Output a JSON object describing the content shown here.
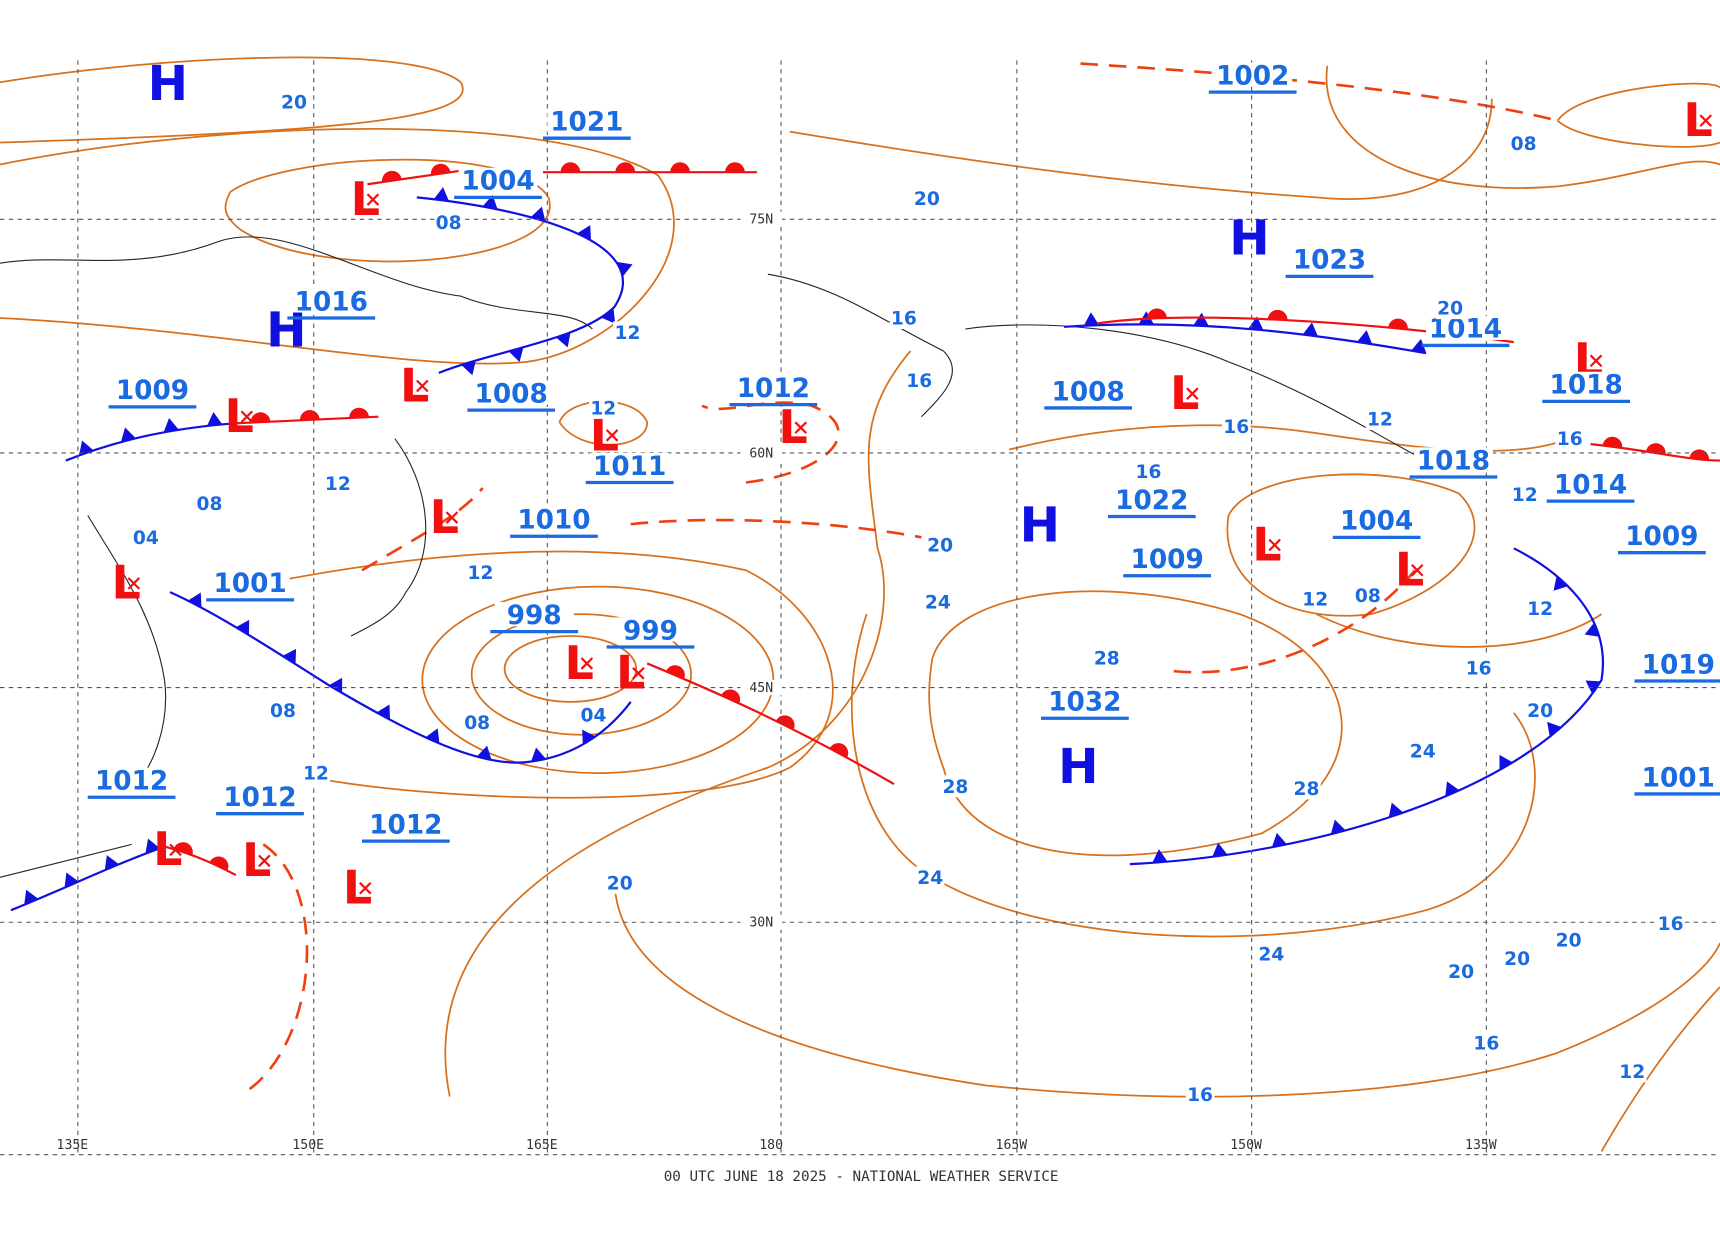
{
  "map": {
    "longitude_labels": [
      "135E",
      "150E",
      "165E",
      "180",
      "165W",
      "150W",
      "135W"
    ],
    "latitude_labels": [
      "75N",
      "60N",
      "45N",
      "30N"
    ],
    "footer": "00 UTC JUNE 18 2025 - NATIONAL WEATHER SERVICE",
    "high_symbols": [
      "H",
      "H",
      "H",
      "H",
      "H"
    ],
    "low_symbols": [
      "L",
      "L",
      "L",
      "L",
      "L",
      "L",
      "L",
      "L",
      "L",
      "L",
      "L",
      "L",
      "L",
      "L",
      "L",
      "L",
      "L"
    ],
    "center_pressures": [
      1021,
      1004,
      1016,
      1009,
      1008,
      1012,
      1011,
      1010,
      1001,
      998,
      999,
      1012,
      1012,
      1012,
      1002,
      1023,
      1014,
      1008,
      1018,
      1018,
      1022,
      1014,
      1004,
      1009,
      1009,
      1032,
      1019,
      1001
    ],
    "isobar_labels": [
      20,
      "08",
      20,
      12,
      16,
      16,
      12,
      12,
      "08",
      "04",
      12,
      20,
      24,
      "08",
      "08",
      "04",
      12,
      28,
      28,
      28,
      24,
      20,
      16,
      16,
      12,
      20,
      "08",
      12,
      "08",
      16,
      12,
      20,
      24,
      24,
      20,
      20,
      20,
      16,
      16,
      12,
      16,
      16,
      12
    ]
  }
}
